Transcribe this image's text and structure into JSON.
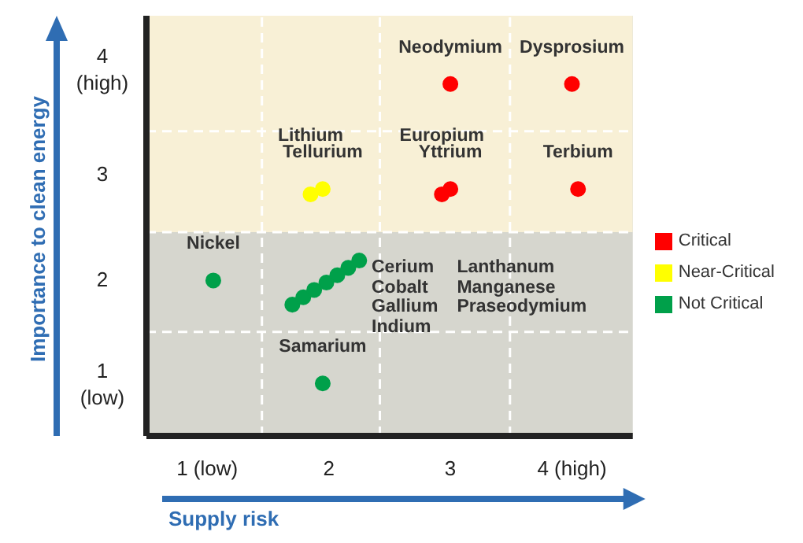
{
  "chart_data": {
    "type": "scatter",
    "xlabel": "Supply risk",
    "ylabel": "Importance to clean energy",
    "xlim": [
      0.5,
      4.5
    ],
    "ylim": [
      0.5,
      4.5
    ],
    "xticks": [
      {
        "value": 1,
        "label": "1 (low)"
      },
      2,
      3,
      {
        "value": 4,
        "label": "4 (high)"
      }
    ],
    "yticks": [
      {
        "value": 1,
        "label": "1 (low)"
      },
      2,
      3,
      {
        "value": 4,
        "label": "4 (high)"
      }
    ],
    "series": [
      {
        "name": "Critical",
        "color": "#ff0000",
        "x": [
          3.0,
          4.0,
          2.93,
          3.0,
          4.05
        ],
        "values": [
          3.85,
          3.85,
          2.8,
          2.85,
          2.85
        ]
      },
      {
        "name": "Near-Critical",
        "color": "#ffff00",
        "x": [
          1.85,
          1.95
        ],
        "values": [
          2.8,
          2.85
        ]
      },
      {
        "name": "Not Critical",
        "color": "#00a04a",
        "x": [
          1.05,
          1.95,
          1.7,
          1.79,
          1.88,
          1.98,
          2.07,
          2.16,
          2.25
        ],
        "values": [
          1.98,
          1.0,
          1.75,
          1.82,
          1.89,
          1.96,
          2.03,
          2.1,
          2.17
        ]
      }
    ],
    "bands": [
      {
        "axis": "y",
        "from": 2.44,
        "to": 4.5,
        "color": "#f8f0d6"
      }
    ],
    "ref_lines": [
      {
        "axis": "x",
        "value": 1.45,
        "color": "#ffffff",
        "line_style": "dashed"
      },
      {
        "axis": "x",
        "value": 2.42,
        "color": "#ffffff",
        "line_style": "dashed"
      },
      {
        "axis": "x",
        "value": 3.49,
        "color": "#ffffff",
        "line_style": "dashed"
      },
      {
        "axis": "y",
        "value": 1.49,
        "color": "#ffffff",
        "line_style": "dashed"
      },
      {
        "axis": "y",
        "value": 2.44,
        "color": "#ffffff",
        "line_style": "dashed"
      },
      {
        "axis": "y",
        "value": 3.4,
        "color": "#ffffff",
        "line_style": "dashed"
      }
    ],
    "annotations": [
      {
        "text": "Neodymium",
        "x": 3.0,
        "y": 3.85
      },
      {
        "text": "Dysprosium",
        "x": 4.0,
        "y": 3.85
      },
      {
        "text": "Lithium",
        "x": 1.85,
        "y": 2.8
      },
      {
        "text": "Tellurium",
        "x": 1.95,
        "y": 2.85
      },
      {
        "text": "Europium",
        "x": 2.93,
        "y": 2.8
      },
      {
        "text": "Yttrium",
        "x": 3.0,
        "y": 2.85
      },
      {
        "text": "Terbium",
        "x": 4.05,
        "y": 2.85
      },
      {
        "text": "Nickel",
        "x": 1.05,
        "y": 1.98
      },
      {
        "text": "Samarium",
        "x": 1.95,
        "y": 1.0
      },
      "Cerium",
      "Cobalt",
      "Gallium",
      "Indium",
      "Lanthanum",
      "Manganese",
      "Praseodymium"
    ],
    "legend": "right",
    "marker": "circle"
  }
}
